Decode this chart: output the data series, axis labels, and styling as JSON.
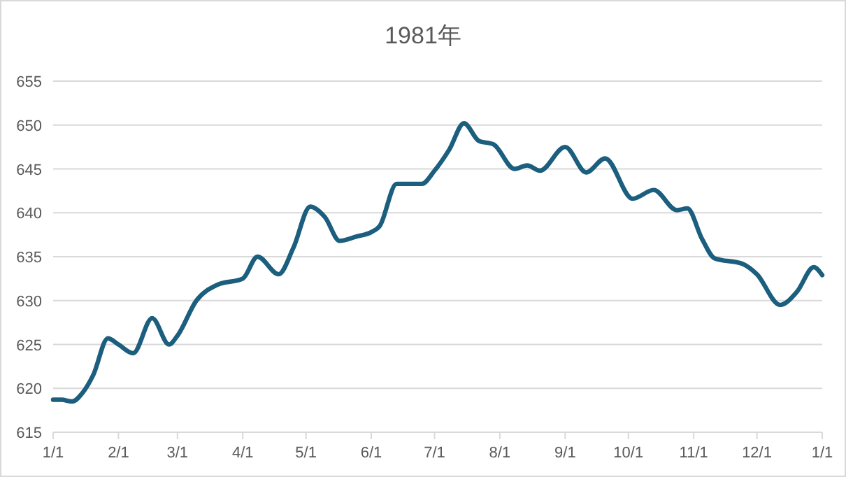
{
  "chart_data": {
    "type": "line",
    "title": "1981年",
    "x": [
      "1981-01-01",
      "1981-01-05",
      "1981-01-10",
      "1981-01-15",
      "1981-01-20",
      "1981-01-27",
      "1981-02-01",
      "1981-02-08",
      "1981-02-17",
      "1981-02-25",
      "1981-03-01",
      "1981-03-10",
      "1981-03-20",
      "1981-04-01",
      "1981-04-08",
      "1981-04-18",
      "1981-04-25",
      "1981-05-03",
      "1981-05-10",
      "1981-05-17",
      "1981-05-25",
      "1981-06-01",
      "1981-06-05",
      "1981-06-13",
      "1981-06-25",
      "1981-07-01",
      "1981-07-08",
      "1981-07-15",
      "1981-07-22",
      "1981-07-29",
      "1981-08-08",
      "1981-08-14",
      "1981-08-20",
      "1981-09-01",
      "1981-09-11",
      "1981-09-20",
      "1981-10-03",
      "1981-10-13",
      "1981-10-24",
      "1981-10-29",
      "1981-11-05",
      "1981-11-11",
      "1981-11-24",
      "1981-12-01",
      "1981-12-12",
      "1981-12-20",
      "1981-12-28",
      "1982-01-01"
    ],
    "series": [
      {
        "color": "#1b5e7e",
        "values": [
          618.7,
          618.7,
          618.5,
          619.5,
          621.5,
          625.7,
          625.0,
          624.0,
          628.0,
          625.0,
          626.0,
          630.0,
          631.8,
          632.5,
          635.0,
          633.0,
          636.0,
          640.7,
          639.5,
          636.8,
          637.3,
          637.8,
          638.5,
          643.3,
          643.3,
          644.8,
          647.2,
          650.2,
          648.2,
          647.8,
          645.0,
          645.4,
          644.8,
          647.5,
          644.6,
          646.2,
          641.6,
          642.6,
          640.3,
          640.5,
          637.0,
          634.8,
          634.2,
          633.0,
          629.5,
          631.0,
          633.8,
          632.9
        ]
      }
    ],
    "xlim": [
      "1981-01-01",
      "1982-01-01"
    ],
    "xticks": [
      {
        "value": "1981-01-01",
        "label": "1/1"
      },
      {
        "value": "1981-02-01",
        "label": "2/1"
      },
      {
        "value": "1981-03-01",
        "label": "3/1"
      },
      {
        "value": "1981-04-01",
        "label": "4/1"
      },
      {
        "value": "1981-05-01",
        "label": "5/1"
      },
      {
        "value": "1981-06-01",
        "label": "6/1"
      },
      {
        "value": "1981-07-01",
        "label": "7/1"
      },
      {
        "value": "1981-08-01",
        "label": "8/1"
      },
      {
        "value": "1981-09-01",
        "label": "9/1"
      },
      {
        "value": "1981-10-01",
        "label": "10/1"
      },
      {
        "value": "1981-11-01",
        "label": "11/1"
      },
      {
        "value": "1981-12-01",
        "label": "12/1"
      },
      {
        "value": "1982-01-01",
        "label": "1/1"
      }
    ],
    "ylim": [
      615,
      655
    ],
    "yticks": [
      615,
      620,
      625,
      630,
      635,
      640,
      645,
      650,
      655
    ],
    "grid": "y",
    "marker": "none",
    "line_style": "solid"
  }
}
